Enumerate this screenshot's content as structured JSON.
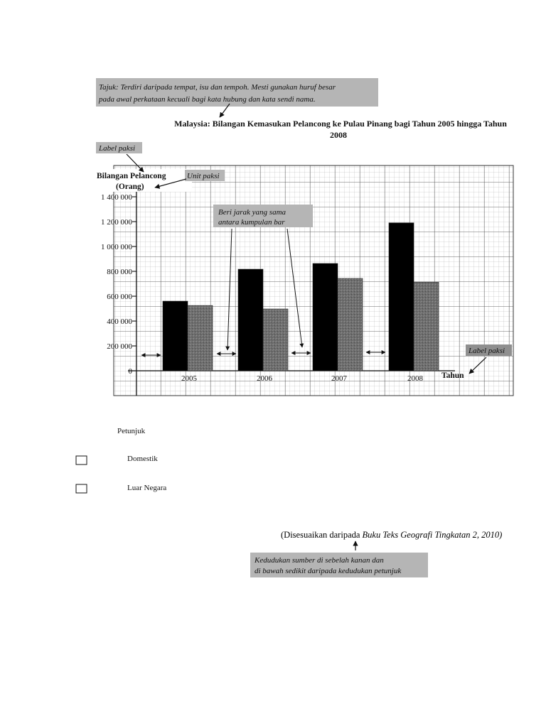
{
  "annotations": {
    "tajuk_line1": "Tajuk: Terdiri daripada tempat, isu dan tempoh. Mesti gunakan huruf besar",
    "tajuk_line2": "pada awal perkataan kecuali bagi kata hubung dan kata sendi nama.",
    "label_paksi_y": "Label paksi",
    "unit_paksi": "Unit paksi",
    "jarak_line1": "Beri jarak yang sama",
    "jarak_line2": "antara kumpulan bar",
    "label_paksi_x": "Label paksi",
    "sumber_line1": "Kedudukan sumber di sebelah kanan dan",
    "sumber_line2": "di bawah sedikit daripada kedudukan petunjuk"
  },
  "chart_data": {
    "type": "bar",
    "title_line1": "Malaysia: Bilangan Kemasukan Pelancong ke Pulau Pinang bagi Tahun 2005 hingga Tahun",
    "title_line2": "2008",
    "ylabel_line1": "Bilangan Pelancong",
    "ylabel_line2": "(Orang)",
    "xlabel": "Tahun",
    "categories": [
      "2005",
      "2006",
      "2007",
      "2008"
    ],
    "ylim": [
      0,
      1400000
    ],
    "yticks": [
      0,
      200000,
      400000,
      600000,
      800000,
      1000000,
      1200000,
      1400000
    ],
    "ytick_labels": [
      "0",
      "200 000",
      "400 000",
      "600 000",
      "800 000",
      "1 000 000",
      "1 200 000",
      "1 400 000"
    ],
    "grid": true,
    "series": [
      {
        "name": "Domestik",
        "color": "#000000",
        "values": [
          560000,
          817000,
          863000,
          1190000
        ]
      },
      {
        "name": "Luar Negara",
        "color": "#6e6e6e",
        "values": [
          525000,
          497000,
          743000,
          712000
        ]
      }
    ],
    "legend": {
      "title": "Petunjuk",
      "position": "bottom-left"
    }
  },
  "source": {
    "prefix": "(Disesuaikan daripada ",
    "italic": "Buku Teks Geografi Tingkatan 2, 2010)"
  }
}
